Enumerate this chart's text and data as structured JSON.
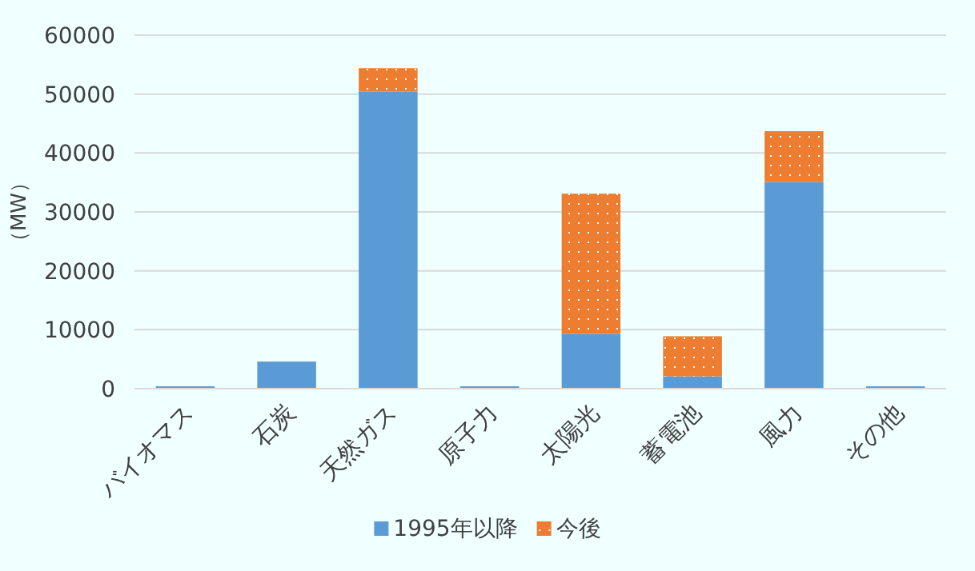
{
  "chart_data": {
    "type": "bar",
    "stacked": true,
    "ylabel": "（MW）",
    "categories": [
      "バイオマス",
      "石炭",
      "天然ガス",
      "原子力",
      "太陽光",
      "蓄電池",
      "風力",
      "その他"
    ],
    "series": [
      {
        "name": "1995年以降",
        "color": "#5b9bd5",
        "values": [
          400,
          4600,
          50400,
          400,
          9300,
          2100,
          35100,
          400
        ]
      },
      {
        "name": "今後",
        "color": "#ed7d31",
        "values": [
          0,
          0,
          4000,
          0,
          23800,
          6800,
          8600,
          0
        ]
      }
    ],
    "ylim": [
      0,
      60000
    ],
    "yticks": [
      0,
      10000,
      20000,
      30000,
      40000,
      50000,
      60000
    ],
    "grid": "y",
    "legend": "bottom"
  }
}
